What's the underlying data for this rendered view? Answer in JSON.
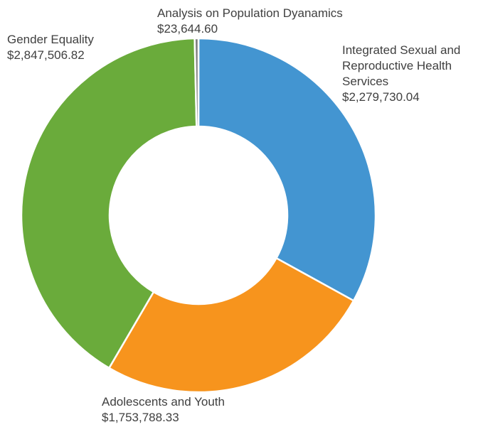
{
  "chart_data": {
    "type": "pie",
    "variant": "donut",
    "labels": [
      [
        "Integrated Sexual and",
        "Reproductive Health",
        "Services"
      ],
      [
        "Adolescents and Youth"
      ],
      [
        "Gender Equality"
      ],
      [
        "Analysis on Population Dyanamics"
      ]
    ],
    "value_labels": [
      "$2,279,730.04",
      "$1,753,788.33",
      "$2,847,506.82",
      "$23,644.60"
    ],
    "values": [
      2279730.04,
      1753788.33,
      2847506.82,
      23644.6
    ],
    "colors": [
      "#4395D1",
      "#F7941D",
      "#6AAB3B",
      "#7F7F7F"
    ],
    "legend": "none"
  }
}
